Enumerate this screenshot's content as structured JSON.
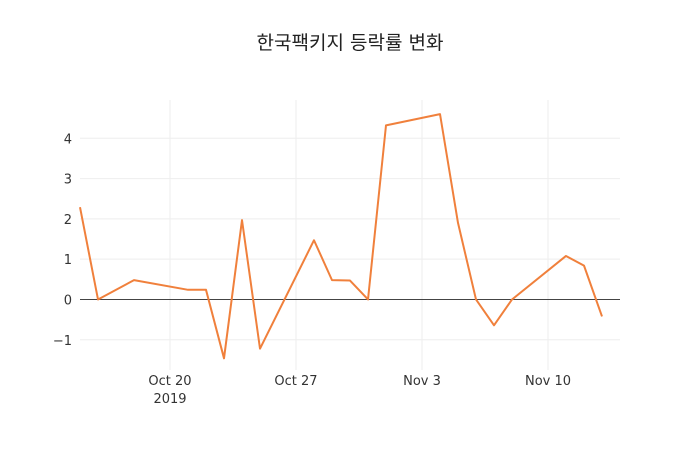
{
  "chart_data": {
    "type": "line",
    "title": "한국팩키지 등락률 변화",
    "xlabel": "",
    "ylabel": "",
    "x_tick_labels": [
      {
        "date": "2019-10-20",
        "label": "Oct 20",
        "sublabel": "2019"
      },
      {
        "date": "2019-10-27",
        "label": "Oct 27",
        "sublabel": ""
      },
      {
        "date": "2019-11-03",
        "label": "Nov 3",
        "sublabel": ""
      },
      {
        "date": "2019-11-10",
        "label": "Nov 10",
        "sublabel": ""
      }
    ],
    "y_ticks": [
      -1,
      0,
      1,
      2,
      3,
      4
    ],
    "y_tick_labels": [
      "−1",
      "0",
      "1",
      "2",
      "3",
      "4"
    ],
    "xlim": [
      "2019-10-15",
      "2019-11-14"
    ],
    "ylim": [
      -1.75,
      4.95
    ],
    "grid": true,
    "zero_line": true,
    "line_color": "#f0803c",
    "x": [
      "2019-10-15",
      "2019-10-16",
      "2019-10-18",
      "2019-10-21",
      "2019-10-22",
      "2019-10-23",
      "2019-10-24",
      "2019-10-25",
      "2019-10-28",
      "2019-10-29",
      "2019-10-30",
      "2019-10-31",
      "2019-11-01",
      "2019-11-04",
      "2019-11-05",
      "2019-11-06",
      "2019-11-07",
      "2019-11-08",
      "2019-11-11",
      "2019-11-12",
      "2019-11-13"
    ],
    "values": [
      2.29,
      0.0,
      0.48,
      0.24,
      0.24,
      -1.46,
      1.97,
      -1.22,
      1.47,
      0.48,
      0.47,
      0.0,
      4.32,
      4.6,
      1.9,
      0.0,
      -0.64,
      0.0,
      1.08,
      0.84,
      -0.42
    ]
  }
}
